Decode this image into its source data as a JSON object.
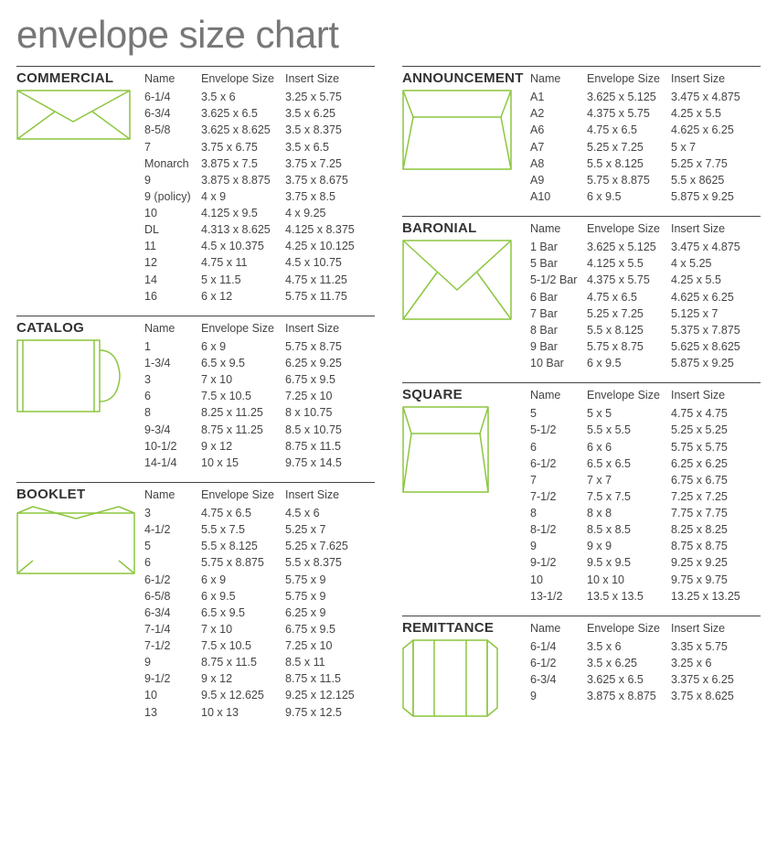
{
  "title": "envelope size chart",
  "headers": {
    "name": "Name",
    "env": "Envelope Size",
    "insert": "Insert Size"
  },
  "accent_color": "#8cc63f",
  "text_color": "#444444",
  "title_color": "#777777",
  "rule_color": "#444444",
  "background": "#ffffff",
  "columns": {
    "left": [
      {
        "title": "COMMERCIAL",
        "icon": "commercial",
        "rows": [
          {
            "name": "6-1/4",
            "env": "3.5 x 6",
            "insert": "3.25 x 5.75"
          },
          {
            "name": "6-3/4",
            "env": "3.625 x 6.5",
            "insert": "3.5 x 6.25"
          },
          {
            "name": "8-5/8",
            "env": "3.625 x 8.625",
            "insert": "3.5 x 8.375"
          },
          {
            "name": "7",
            "env": "3.75 x 6.75",
            "insert": "3.5 x 6.5"
          },
          {
            "name": "Monarch",
            "env": "3.875 x 7.5",
            "insert": "3.75 x 7.25"
          },
          {
            "name": "9",
            "env": "3.875 x 8.875",
            "insert": "3.75 x 8.675"
          },
          {
            "name": "9 (policy)",
            "env": "4 x 9",
            "insert": "3.75 x 8.5"
          },
          {
            "name": "10",
            "env": "4.125 x 9.5",
            "insert": "4 x 9.25"
          },
          {
            "name": "DL",
            "env": "4.313 x 8.625",
            "insert": "4.125 x 8.375"
          },
          {
            "name": "11",
            "env": "4.5 x 10.375",
            "insert": "4.25 x 10.125"
          },
          {
            "name": "12",
            "env": "4.75 x 11",
            "insert": "4.5 x 10.75"
          },
          {
            "name": "14",
            "env": "5 x 11.5",
            "insert": "4.75 x 11.25"
          },
          {
            "name": "16",
            "env": "6 x 12",
            "insert": "5.75 x 11.75"
          }
        ]
      },
      {
        "title": "CATALOG",
        "icon": "catalog",
        "rows": [
          {
            "name": "1",
            "env": "6 x 9",
            "insert": "5.75 x 8.75"
          },
          {
            "name": "1-3/4",
            "env": "6.5 x 9.5",
            "insert": "6.25 x 9.25"
          },
          {
            "name": "3",
            "env": "7 x 10",
            "insert": "6.75 x 9.5"
          },
          {
            "name": "6",
            "env": "7.5 x 10.5",
            "insert": "7.25 x 10"
          },
          {
            "name": "8",
            "env": "8.25 x 11.25",
            "insert": "8 x 10.75"
          },
          {
            "name": "9-3/4",
            "env": "8.75 x 11.25",
            "insert": "8.5 x 10.75"
          },
          {
            "name": "10-1/2",
            "env": "9 x 12",
            "insert": "8.75 x 11.5"
          },
          {
            "name": "14-1/4",
            "env": "10 x 15",
            "insert": "9.75 x 14.5"
          }
        ]
      },
      {
        "title": "BOOKLET",
        "icon": "booklet",
        "rows": [
          {
            "name": "3",
            "env": "4.75 x 6.5",
            "insert": "4.5 x 6"
          },
          {
            "name": "4-1/2",
            "env": "5.5 x 7.5",
            "insert": "5.25 x 7"
          },
          {
            "name": "5",
            "env": "5.5 x 8.125",
            "insert": "5.25 x 7.625"
          },
          {
            "name": "6",
            "env": "5.75 x 8.875",
            "insert": "5.5 x 8.375"
          },
          {
            "name": "6-1/2",
            "env": "6 x 9",
            "insert": "5.75 x 9"
          },
          {
            "name": "6-5/8",
            "env": "6 x 9.5",
            "insert": "5.75 x 9"
          },
          {
            "name": "6-3/4",
            "env": "6.5 x 9.5",
            "insert": "6.25 x 9"
          },
          {
            "name": "7-1/4",
            "env": "7 x 10",
            "insert": "6.75 x 9.5"
          },
          {
            "name": "7-1/2",
            "env": "7.5 x 10.5",
            "insert": "7.25 x 10"
          },
          {
            "name": "9",
            "env": "8.75 x 11.5",
            "insert": "8.5 x 11"
          },
          {
            "name": "9-1/2",
            "env": "9 x 12",
            "insert": "8.75 x 11.5"
          },
          {
            "name": "10",
            "env": "9.5 x 12.625",
            "insert": "9.25 x 12.125"
          },
          {
            "name": "13",
            "env": "10 x 13",
            "insert": "9.75 x 12.5"
          }
        ]
      }
    ],
    "right": [
      {
        "title": "ANNOUNCEMENT",
        "icon": "announcement",
        "rows": [
          {
            "name": "A1",
            "env": "3.625 x 5.125",
            "insert": "3.475 x 4.875"
          },
          {
            "name": "A2",
            "env": "4.375 x 5.75",
            "insert": "4.25 x 5.5"
          },
          {
            "name": "A6",
            "env": "4.75 x 6.5",
            "insert": "4.625 x 6.25"
          },
          {
            "name": "A7",
            "env": "5.25 x 7.25",
            "insert": "5 x 7"
          },
          {
            "name": "A8",
            "env": "5.5 x 8.125",
            "insert": "5.25 x 7.75"
          },
          {
            "name": "A9",
            "env": "5.75 x 8.875",
            "insert": "5.5 x 8625"
          },
          {
            "name": "A10",
            "env": "6 x 9.5",
            "insert": "5.875 x 9.25"
          }
        ]
      },
      {
        "title": "BARONIAL",
        "icon": "baronial",
        "rows": [
          {
            "name": "1 Bar",
            "env": "3.625 x 5.125",
            "insert": "3.475 x 4.875"
          },
          {
            "name": "5 Bar",
            "env": "4.125 x 5.5",
            "insert": "4 x 5.25"
          },
          {
            "name": "5-1/2 Bar",
            "env": "4.375 x 5.75",
            "insert": "4.25 x 5.5"
          },
          {
            "name": "6 Bar",
            "env": "4.75 x 6.5",
            "insert": "4.625 x 6.25"
          },
          {
            "name": "7 Bar",
            "env": "5.25 x 7.25",
            "insert": "5.125 x 7"
          },
          {
            "name": "8 Bar",
            "env": "5.5 x 8.125",
            "insert": "5.375 x 7.875"
          },
          {
            "name": "9 Bar",
            "env": "5.75 x 8.75",
            "insert": "5.625 x 8.625"
          },
          {
            "name": "10 Bar",
            "env": "6 x 9.5",
            "insert": "5.875 x 9.25"
          }
        ]
      },
      {
        "title": "SQUARE",
        "icon": "square",
        "rows": [
          {
            "name": "5",
            "env": "5 x 5",
            "insert": "4.75 x 4.75"
          },
          {
            "name": "5-1/2",
            "env": "5.5 x 5.5",
            "insert": "5.25 x 5.25"
          },
          {
            "name": "6",
            "env": "6 x 6",
            "insert": "5.75 x 5.75"
          },
          {
            "name": "6-1/2",
            "env": "6.5 x 6.5",
            "insert": "6.25 x 6.25"
          },
          {
            "name": "7",
            "env": "7 x 7",
            "insert": "6.75 x 6.75"
          },
          {
            "name": "7-1/2",
            "env": "7.5 x 7.5",
            "insert": "7.25 x 7.25"
          },
          {
            "name": "8",
            "env": "8 x 8",
            "insert": "7.75 x 7.75"
          },
          {
            "name": "8-1/2",
            "env": "8.5 x 8.5",
            "insert": "8.25 x 8.25"
          },
          {
            "name": "9",
            "env": "9 x 9",
            "insert": "8.75 x 8.75"
          },
          {
            "name": "9-1/2",
            "env": "9.5 x 9.5",
            "insert": "9.25 x 9.25"
          },
          {
            "name": "10",
            "env": "10 x 10",
            "insert": "9.75 x 9.75"
          },
          {
            "name": "13-1/2",
            "env": "13.5 x 13.5",
            "insert": "13.25 x 13.25"
          }
        ]
      },
      {
        "title": "REMITTANCE",
        "icon": "remittance",
        "rows": [
          {
            "name": "6-1/4",
            "env": "3.5 x 6",
            "insert": "3.35 x 5.75"
          },
          {
            "name": "6-1/2",
            "env": "3.5 x 6.25",
            "insert": "3.25 x 6"
          },
          {
            "name": "6-3/4",
            "env": "3.625 x 6.5",
            "insert": "3.375 x 6.25"
          },
          {
            "name": "9",
            "env": "3.875 x 8.875",
            "insert": "3.75 x 8.625"
          }
        ]
      }
    ]
  }
}
